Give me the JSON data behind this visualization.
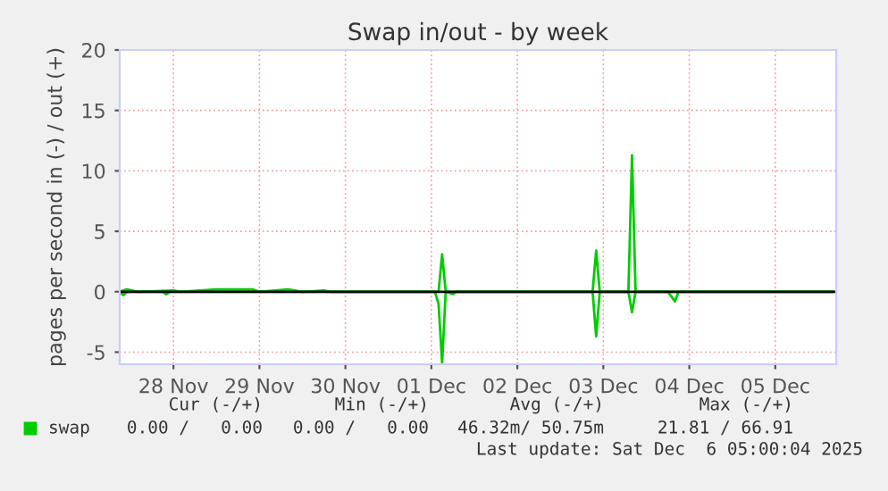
{
  "chart_data": {
    "type": "line",
    "title": "Swap in/out - by week",
    "ylabel": "pages per second in (-) / out (+)",
    "series": [
      {
        "name": "swap",
        "color": "#00cc00",
        "x": [
          "2025-11-27T21:00",
          "2025-11-27T23:00",
          "2025-11-28T02:00",
          "2025-11-28T12:00",
          "2025-11-28T14:00",
          "2025-11-29T00:00",
          "2025-11-29T10:00",
          "2025-11-29T12:00",
          "2025-11-29T20:00",
          "2025-11-30T00:00",
          "2025-11-30T06:00",
          "2025-11-30T08:00",
          "2025-12-01T14:00",
          "2025-12-01T15:00",
          "2025-12-01T16:00",
          "2025-12-03T09:00",
          "2025-12-03T10:00",
          "2025-12-03T11:00",
          "2025-12-03T19:00",
          "2025-12-03T20:00",
          "2025-12-03T21:00",
          "2025-12-06T04:00"
        ],
        "values": [
          0,
          0.2,
          0,
          0.1,
          0,
          0.2,
          0.2,
          0,
          0.2,
          0,
          0.1,
          0,
          0,
          3.1,
          0,
          0,
          3.4,
          0,
          0,
          11.3,
          0,
          0
        ]
      },
      {
        "color": "#00cc00",
        "x": [
          "2025-11-27T21:00",
          "2025-11-27T22:00",
          "2025-11-27T23:00",
          "2025-11-28T09:00",
          "2025-11-28T10:00",
          "2025-11-28T11:00",
          "2025-12-01T13:00",
          "2025-12-01T14:00",
          "2025-12-01T15:00",
          "2025-12-01T16:00",
          "2025-12-01T18:00",
          "2025-12-01T19:00",
          "2025-12-03T09:00",
          "2025-12-03T10:00",
          "2025-12-03T11:00",
          "2025-12-03T19:00",
          "2025-12-03T20:00",
          "2025-12-03T21:00",
          "2025-12-04T06:00",
          "2025-12-04T07:00",
          "2025-12-04T08:00",
          "2025-12-04T09:00",
          "2025-12-06T04:00"
        ],
        "values": [
          0,
          -0.3,
          0,
          0,
          -0.2,
          0,
          0,
          -1.0,
          -5.9,
          0,
          -0.2,
          0,
          0,
          -3.7,
          0,
          0,
          -1.7,
          0,
          0,
          -0.4,
          -0.8,
          0,
          0
        ]
      }
    ],
    "xlim": [
      "2025-11-27T21:00",
      "2025-12-06T05:00"
    ],
    "xticks": [
      {
        "value": "2025-11-28T12:00",
        "label": "28 Nov"
      },
      {
        "value": "2025-11-29T12:00",
        "label": "29 Nov"
      },
      {
        "value": "2025-11-30T12:00",
        "label": "30 Nov"
      },
      {
        "value": "2025-12-01T12:00",
        "label": "01 Dec"
      },
      {
        "value": "2025-12-02T12:00",
        "label": "02 Dec"
      },
      {
        "value": "2025-12-03T12:00",
        "label": "03 Dec"
      },
      {
        "value": "2025-12-04T12:00",
        "label": "04 Dec"
      },
      {
        "value": "2025-12-05T12:00",
        "label": "05 Dec"
      }
    ],
    "ylim": [
      -6,
      20
    ],
    "yticks": [
      -5,
      0,
      5,
      10,
      15,
      20
    ],
    "ref_lines": [
      {
        "axis": "y",
        "value": 0,
        "color": "#000000"
      }
    ],
    "grid": true,
    "legend": "bottom",
    "marker": "none",
    "line_style": "solid",
    "annotations": [
      "Cur (-/+)",
      "0.00 /   0.00",
      "Min (-/+)",
      "0.00 /   0.00",
      "Avg (-/+)",
      "46.32m/ 50.75m",
      "Max (-/+)",
      "21.81 / 66.91",
      "Last update: Sat Dec  6 05:00:04 2025"
    ]
  }
}
